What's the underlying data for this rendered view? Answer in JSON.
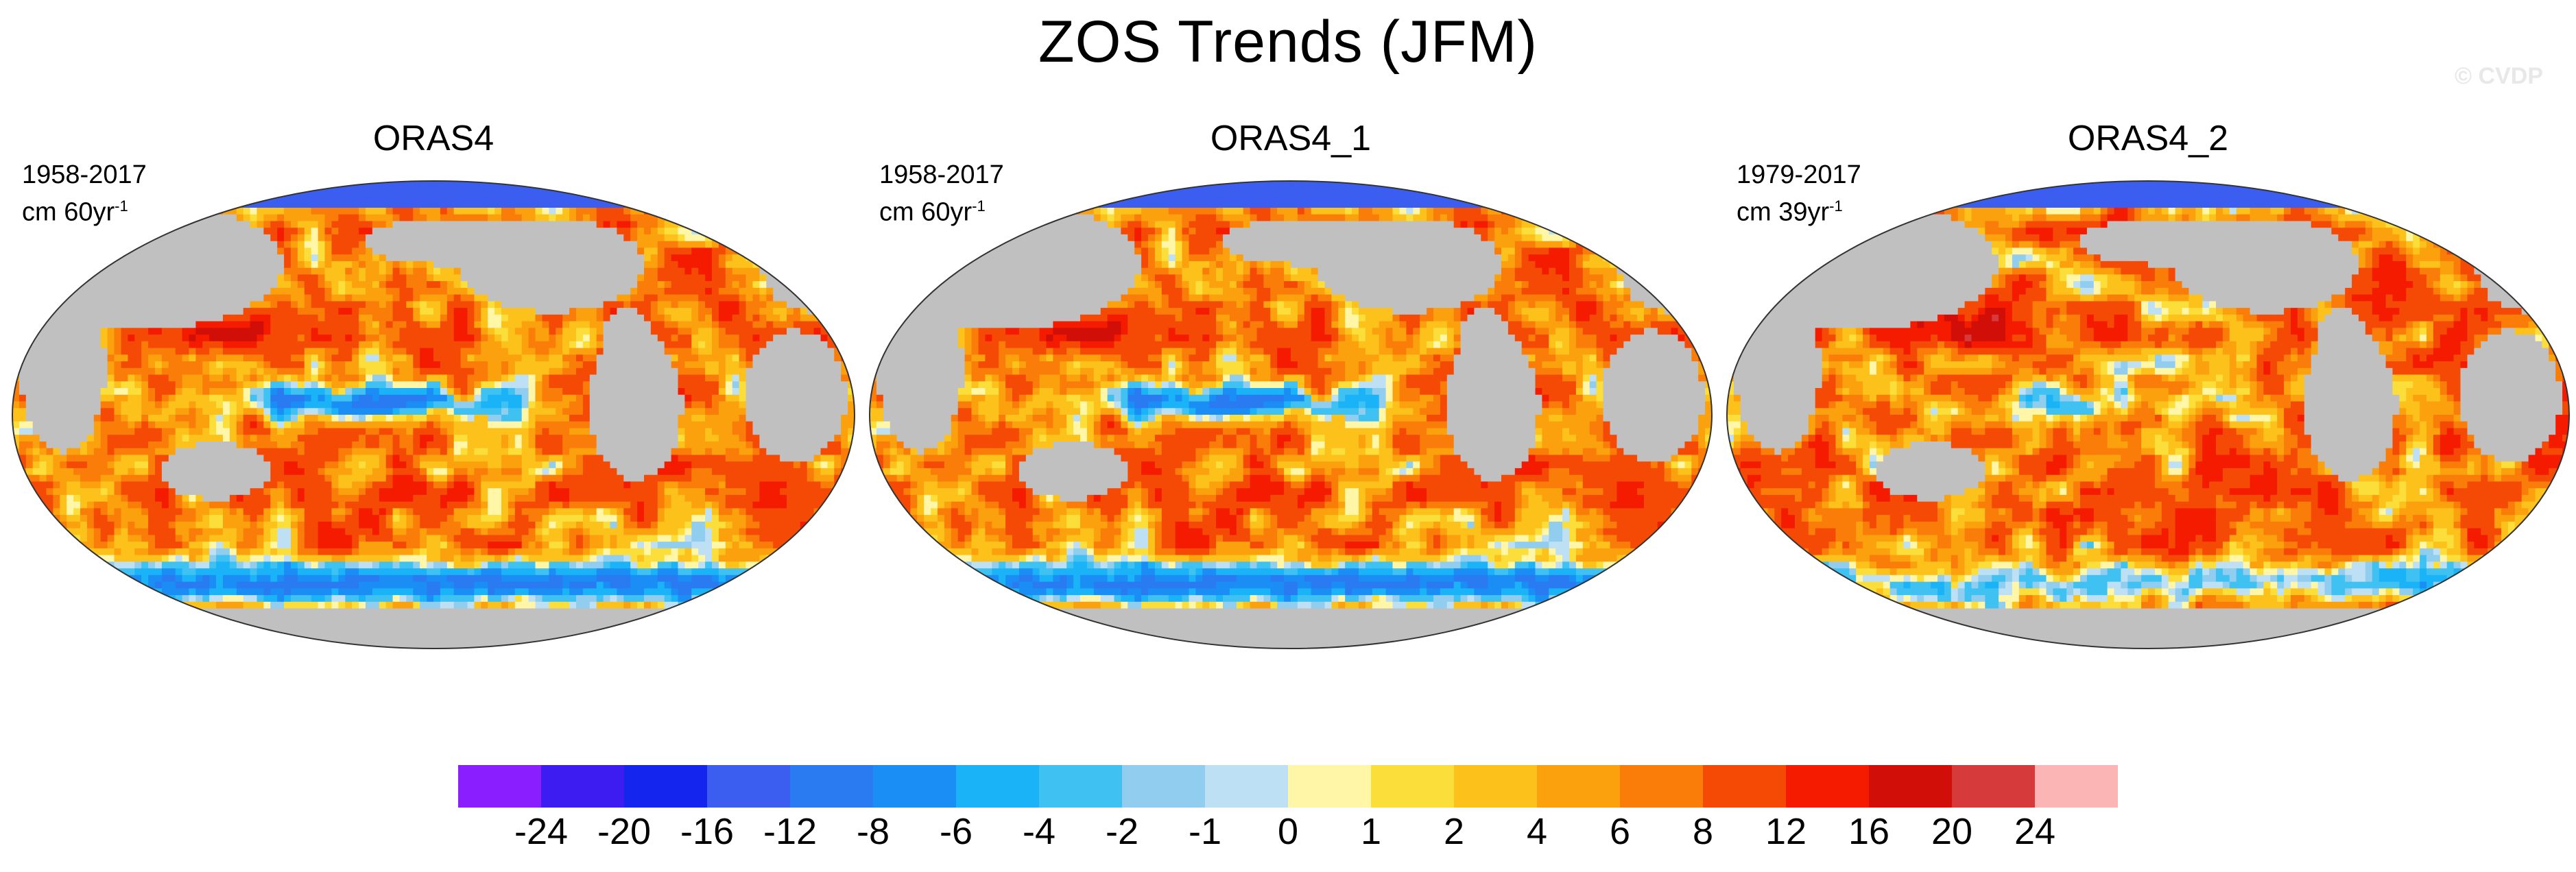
{
  "title": "ZOS Trends (JFM)",
  "watermark": "© CVDP",
  "panels": [
    {
      "title": "ORAS4",
      "period": "1958-2017",
      "units_prefix": "cm 60yr",
      "units_exp": "-1",
      "pattern": 0
    },
    {
      "title": "ORAS4_1",
      "period": "1958-2017",
      "units_prefix": "cm 60yr",
      "units_exp": "-1",
      "pattern": 0
    },
    {
      "title": "ORAS4_2",
      "period": "1979-2017",
      "units_prefix": "cm 39yr",
      "units_exp": "-1",
      "pattern": 1
    }
  ],
  "colors": {
    "land": "#c0c0c0",
    "background": "#ffffff"
  },
  "chart_data": {
    "type": "heatmap",
    "title": "ZOS Trends (JFM)",
    "variable": "ZOS",
    "season": "JFM",
    "projection": "Robinson (global)",
    "colorbar": {
      "levels": [
        -24,
        -20,
        -16,
        -12,
        -8,
        -6,
        -4,
        -2,
        -1,
        0,
        1,
        2,
        4,
        6,
        8,
        12,
        16,
        20,
        24
      ],
      "tick_labels": [
        "-24",
        "-20",
        "-16",
        "-12",
        "-8",
        "-6",
        "-4",
        "-2",
        "-1",
        "0",
        "1",
        "2",
        "4",
        "6",
        "8",
        "12",
        "16",
        "20",
        "24"
      ],
      "colors": [
        "#8a1eff",
        "#3d1cf2",
        "#1426ee",
        "#3b5ef0",
        "#2a7bf2",
        "#1a8ef5",
        "#1bb3f7",
        "#3fc2f2",
        "#91cdee",
        "#bde0f5",
        "#fff6a8",
        "#fcde3a",
        "#fcc21b",
        "#fca10e",
        "#fa7d09",
        "#f54a06",
        "#f41b01",
        "#d10e07",
        "#d73a3a",
        "#fcb5b5"
      ]
    }
  }
}
